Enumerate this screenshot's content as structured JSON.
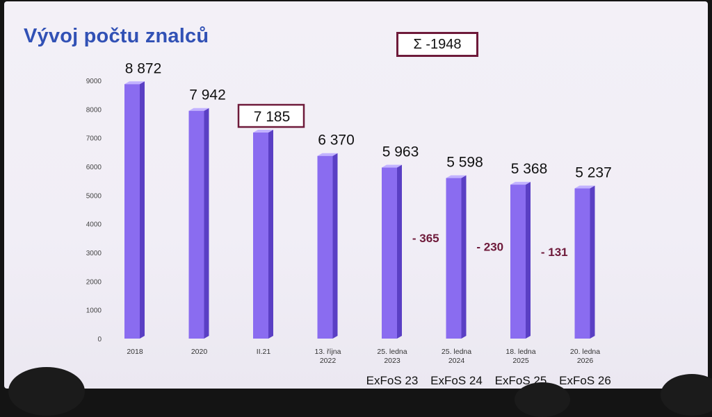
{
  "slide": {
    "title": "Vývoj počtu znalců",
    "sum_label": "Σ -1948"
  },
  "colors": {
    "bar_front": "#8a6cf0",
    "bar_side": "#5a3fc4",
    "bar_top": "#c2b2ff",
    "highlight_border": "#6e1a3a",
    "delta_text": "#6e1a3a",
    "title_text": "#3151b5"
  },
  "chart_data": {
    "type": "bar",
    "title": "Vývoj počtu znalců",
    "categories": [
      "2018",
      "2020",
      "II.21",
      "13. října 2022",
      "25. ledna 2023",
      "25. ledna 2024",
      "18. ledna 2025",
      "20. ledna 2026"
    ],
    "values": [
      8872,
      7942,
      7185,
      6370,
      5963,
      5598,
      5368,
      5237
    ],
    "value_labels": [
      "8 872",
      "7 942",
      "7 185",
      "6 370",
      "5 963",
      "5 598",
      "5 368",
      "5 237"
    ],
    "highlighted_value_index": 2,
    "yticks": [
      0,
      1000,
      2000,
      3000,
      4000,
      5000,
      6000,
      7000,
      8000,
      9000
    ],
    "ylim": [
      0,
      9000
    ],
    "bottom_labels": [
      "",
      "",
      "",
      "",
      "ExFoS 23",
      "ExFoS 24",
      "ExFoS 25",
      "ExFoS 26"
    ],
    "deltas": [
      {
        "after_index": 4,
        "label": "- 365"
      },
      {
        "after_index": 5,
        "label": "- 230"
      },
      {
        "after_index": 6,
        "label": "- 131"
      }
    ],
    "total_change_label": "Σ -1948",
    "grid": false,
    "legend": "none"
  }
}
